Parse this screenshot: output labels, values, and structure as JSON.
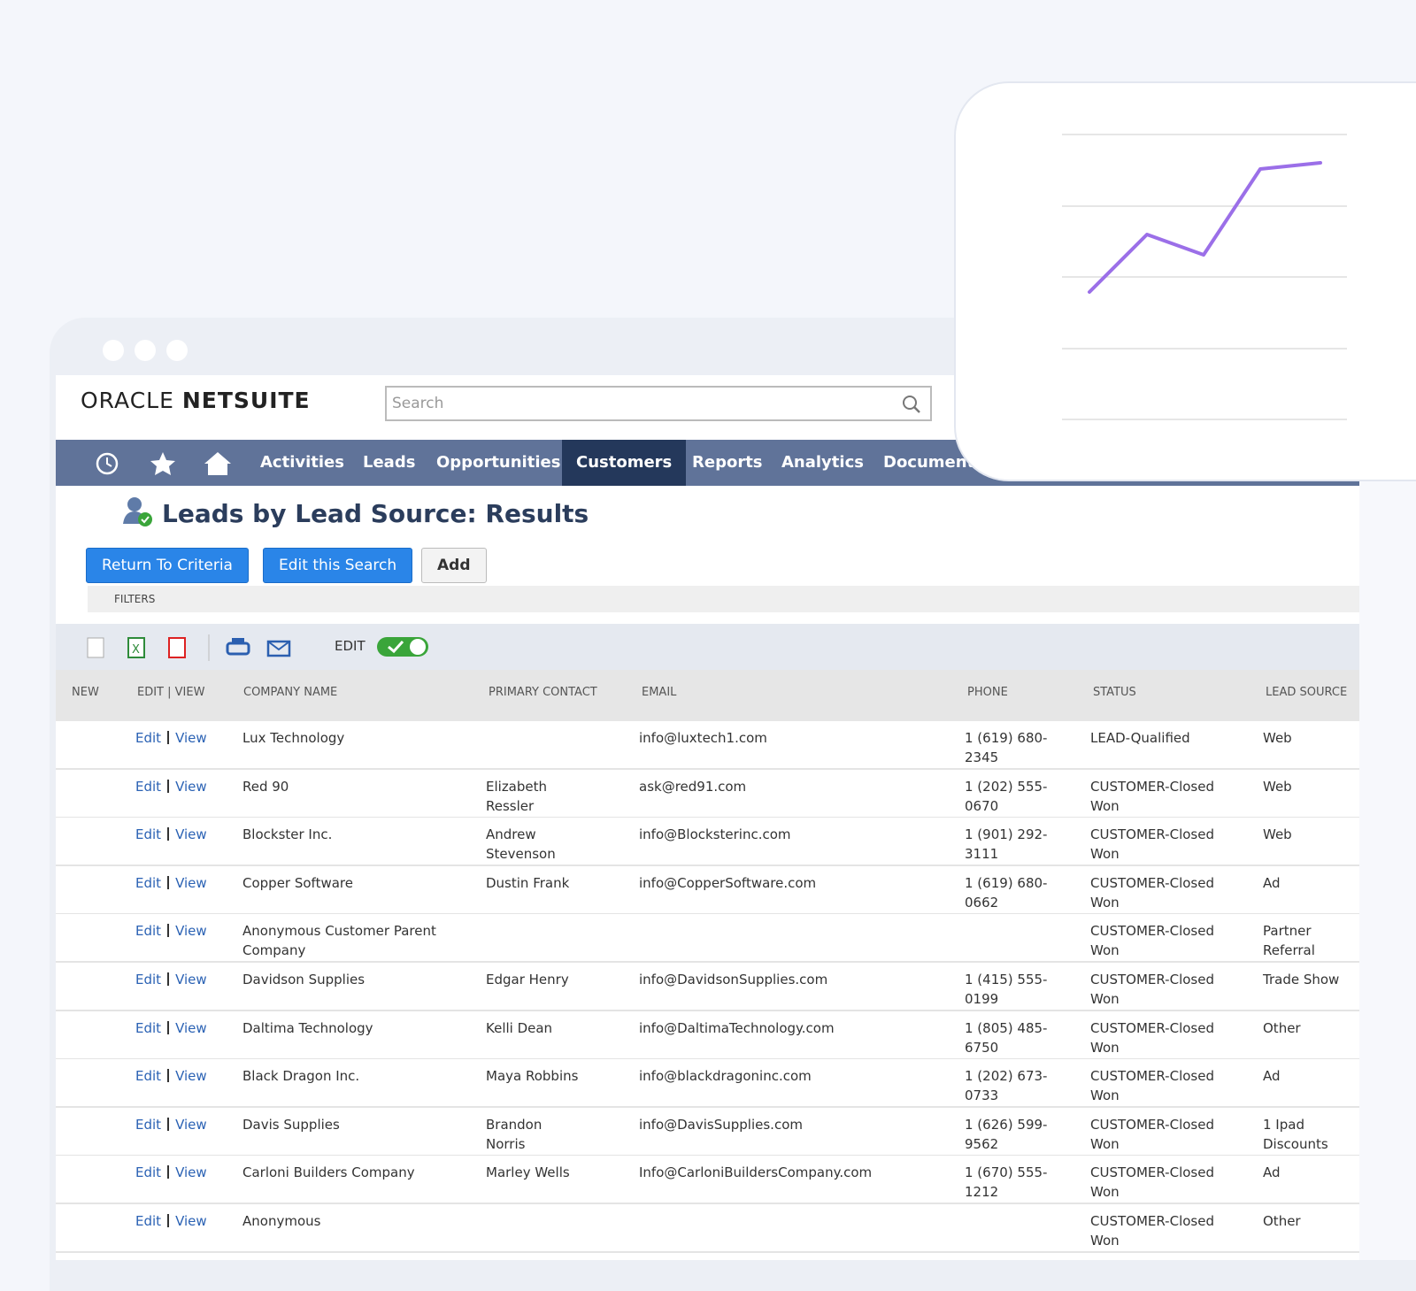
{
  "window": {
    "logo": {
      "brand": "ORACLE",
      "product": "NETSUITE"
    },
    "search_placeholder": "Search",
    "nav": [
      "Activities",
      "Leads",
      "Opportunities",
      "Customers",
      "Reports",
      "Analytics",
      "Documents"
    ],
    "page_title": "Leads by Lead Source: Results",
    "buttons": [
      "Return To Criteria",
      "Edit this Search",
      "Add"
    ],
    "filters_label": "FILTERS",
    "toolbar_edit_label": "EDIT",
    "table": {
      "headers": [
        "NEW",
        "EDIT | VIEW",
        "COMPANY NAME",
        "PRIMARY CONTACT",
        "EMAIL",
        "PHONE",
        "STATUS",
        "LEAD SOURCE"
      ],
      "row_links": [
        "Edit",
        "View"
      ],
      "rows": [
        [
          "Lux Technology",
          null,
          "info@luxtech1.com",
          "1 (619) 680-2345",
          "LEAD-Qualified",
          "Web"
        ],
        [
          "Red 90",
          "Elizabeth Ressler",
          "ask@red91.com",
          "1 (202) 555-0670",
          "CUSTOMER-Closed Won",
          "Web"
        ],
        [
          "Blockster Inc.",
          "Andrew Stevenson",
          "info@Blocksterinc.com",
          "1 (901) 292-3111",
          "CUSTOMER-Closed Won",
          "Web"
        ],
        [
          "Copper Software",
          "Dustin Frank",
          "info@CopperSoftware.com",
          "1 (619) 680-0662",
          "CUSTOMER-Closed Won",
          "Ad"
        ],
        [
          "Anonymous Customer Parent Company",
          null,
          null,
          null,
          "CUSTOMER-Closed Won",
          "Partner Referral"
        ],
        [
          "Davidson Supplies",
          "Edgar Henry",
          "info@DavidsonSupplies.com",
          "1 (415) 555-0199",
          "CUSTOMER-Closed Won",
          "Trade Show"
        ],
        [
          "Daltima Technology",
          "Kelli Dean",
          "info@DaltimaTechnology.com",
          "1 (805) 485-6750",
          "CUSTOMER-Closed Won",
          "Other"
        ],
        [
          "Black Dragon Inc.",
          "Maya Robbins",
          "info@blackdragoninc.com",
          "1 (202) 673-0733",
          "CUSTOMER-Closed Won",
          "Ad"
        ],
        [
          "Davis Supplies",
          "Brandon Norris",
          "info@DavisSupplies.com",
          "1 (626) 599-9562",
          "CUSTOMER-Closed Won",
          "1 Ipad Discounts"
        ],
        [
          "Carloni Builders Company",
          "Marley Wells",
          "Info@CarloniBuildersCompany.com",
          "1 (670) 555-1212",
          "CUSTOMER-Closed Won",
          "Ad"
        ],
        [
          "Anonymous",
          null,
          null,
          null,
          "CUSTOMER-Closed Won",
          "Other"
        ]
      ]
    }
  }
}
